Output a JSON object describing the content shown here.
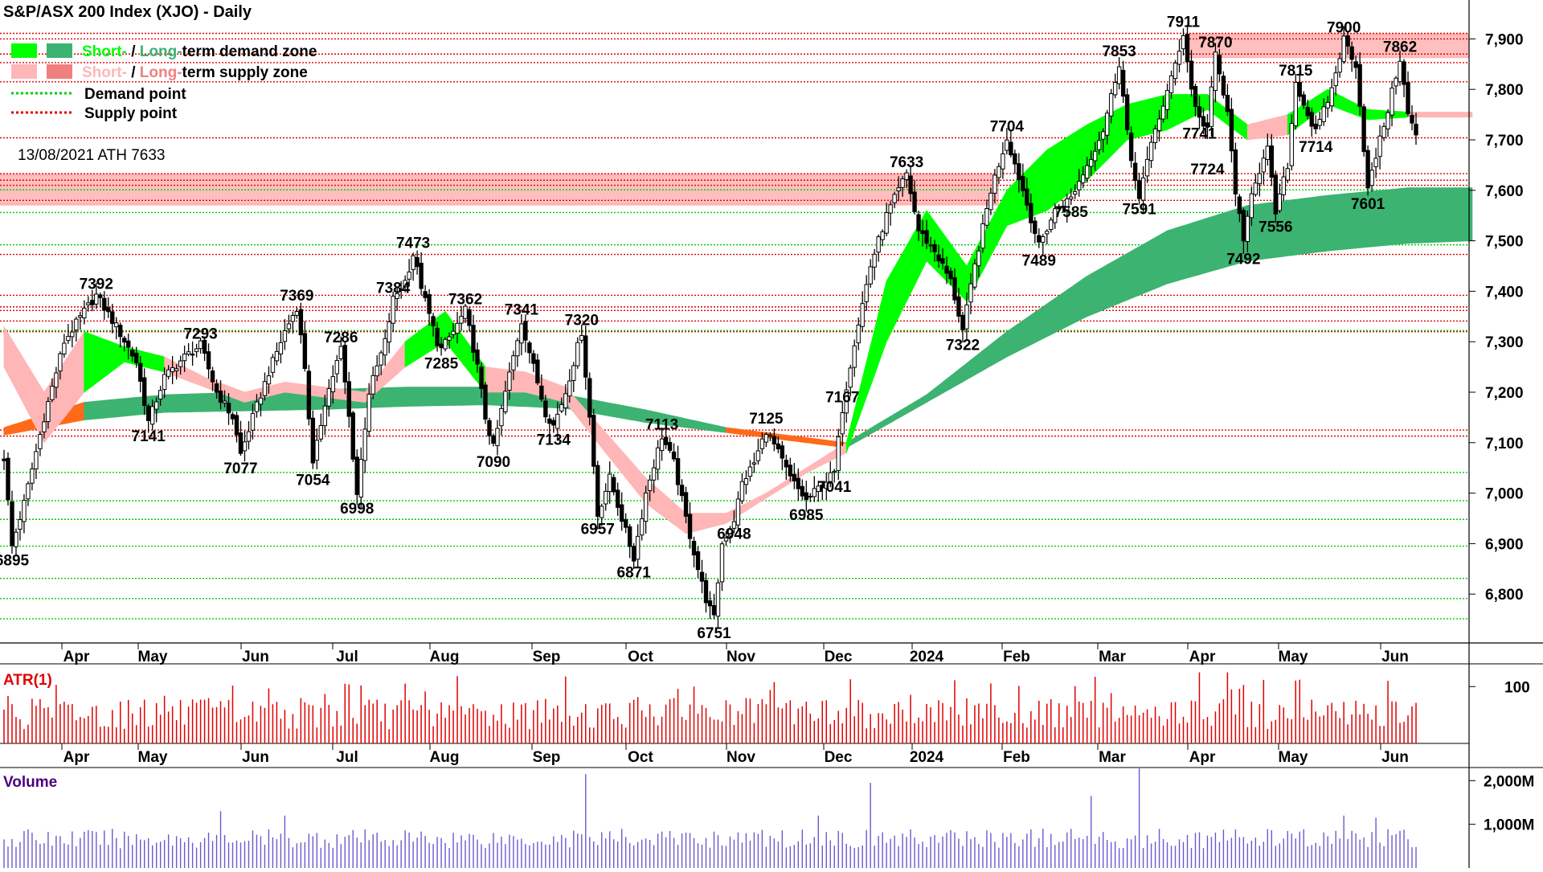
{
  "chart_data": {
    "type": "candlestick",
    "title": "S&P/ASX 200 Index (XJO) - Daily",
    "legend": [
      {
        "key": "demand_zone",
        "labels": [
          "Short-",
          " / ",
          "Long-",
          "term demand zone"
        ],
        "colors": [
          "#00ff00",
          "#000000",
          "#3cb371",
          "#000000"
        ],
        "swatches": [
          "#00ff00",
          "#3cb371"
        ]
      },
      {
        "key": "supply_zone",
        "labels": [
          "Short-",
          " / ",
          "Long-",
          "term supply zone"
        ],
        "colors": [
          "#ffb6b6",
          "#000000",
          "#f08080",
          "#000000"
        ],
        "swatches": [
          "#ffb6b6",
          "#f08080"
        ]
      },
      {
        "key": "demand_point",
        "label": "Demand point",
        "color": "#00cc00"
      },
      {
        "key": "supply_point",
        "label": "Supply point",
        "color": "#e00000"
      }
    ],
    "annotation": "13/08/2021 ATH 7633",
    "x_axis_labels": [
      "Apr",
      "May",
      "Jun",
      "Jul",
      "Aug",
      "Sep",
      "Oct",
      "Nov",
      "Dec",
      "2024",
      "Feb",
      "Mar",
      "Apr",
      "May",
      "Jun"
    ],
    "price_axis": {
      "ticks": [
        "7,900",
        "7,800",
        "7,700",
        "7,600",
        "7,500",
        "7,400",
        "7,300",
        "7,200",
        "7,100",
        "7,000",
        "6,900",
        "6,800"
      ],
      "tick_values": [
        7900,
        7800,
        7700,
        7600,
        7500,
        7400,
        7300,
        7200,
        7100,
        7000,
        6900,
        6800
      ],
      "ylim": [
        6700,
        7950
      ]
    },
    "price_labels": [
      {
        "text": "6895",
        "i": 2,
        "v": 6895,
        "pos": "below"
      },
      {
        "text": "7392",
        "i": 23,
        "v": 7392,
        "pos": "above"
      },
      {
        "text": "7141",
        "i": 36,
        "v": 7141,
        "pos": "below"
      },
      {
        "text": "7293",
        "i": 49,
        "v": 7293,
        "pos": "above"
      },
      {
        "text": "7077",
        "i": 59,
        "v": 7077,
        "pos": "below"
      },
      {
        "text": "7369",
        "i": 73,
        "v": 7369,
        "pos": "above"
      },
      {
        "text": "7054",
        "i": 77,
        "v": 7054,
        "pos": "below"
      },
      {
        "text": "7286",
        "i": 84,
        "v": 7286,
        "pos": "above"
      },
      {
        "text": "6998",
        "i": 88,
        "v": 6998,
        "pos": "below"
      },
      {
        "text": "7384",
        "i": 97,
        "v": 7384,
        "pos": "above"
      },
      {
        "text": "7473",
        "i": 102,
        "v": 7473,
        "pos": "above"
      },
      {
        "text": "7285",
        "i": 109,
        "v": 7285,
        "pos": "below"
      },
      {
        "text": "7362",
        "i": 115,
        "v": 7362,
        "pos": "above"
      },
      {
        "text": "7090",
        "i": 122,
        "v": 7090,
        "pos": "below"
      },
      {
        "text": "7341",
        "i": 129,
        "v": 7341,
        "pos": "above"
      },
      {
        "text": "7134",
        "i": 137,
        "v": 7134,
        "pos": "below"
      },
      {
        "text": "7320",
        "i": 144,
        "v": 7320,
        "pos": "above"
      },
      {
        "text": "6957",
        "i": 148,
        "v": 6957,
        "pos": "below"
      },
      {
        "text": "6871",
        "i": 157,
        "v": 6871,
        "pos": "below"
      },
      {
        "text": "7113",
        "i": 164,
        "v": 7113,
        "pos": "above"
      },
      {
        "text": "6751",
        "i": 177,
        "v": 6751,
        "pos": "below"
      },
      {
        "text": "6948",
        "i": 182,
        "v": 6948,
        "pos": "below"
      },
      {
        "text": "7125",
        "i": 190,
        "v": 7125,
        "pos": "above"
      },
      {
        "text": "6985",
        "i": 200,
        "v": 6985,
        "pos": "below"
      },
      {
        "text": "7041",
        "i": 207,
        "v": 7041,
        "pos": "below"
      },
      {
        "text": "7167",
        "i": 209,
        "v": 7167,
        "pos": "above"
      },
      {
        "text": "7633",
        "i": 225,
        "v": 7633,
        "pos": "above"
      },
      {
        "text": "7322",
        "i": 239,
        "v": 7322,
        "pos": "below"
      },
      {
        "text": "7704",
        "i": 250,
        "v": 7704,
        "pos": "above"
      },
      {
        "text": "7489",
        "i": 258,
        "v": 7489,
        "pos": "below"
      },
      {
        "text": "7585",
        "i": 266,
        "v": 7585,
        "pos": "below"
      },
      {
        "text": "7853",
        "i": 278,
        "v": 7853,
        "pos": "above"
      },
      {
        "text": "7591",
        "i": 283,
        "v": 7591,
        "pos": "below"
      },
      {
        "text": "7911",
        "i": 294,
        "v": 7911,
        "pos": "above"
      },
      {
        "text": "7741",
        "i": 298,
        "v": 7741,
        "pos": "below"
      },
      {
        "text": "7870",
        "i": 302,
        "v": 7870,
        "pos": "above"
      },
      {
        "text": "7724",
        "i": 300,
        "v": 7724,
        "pos": "below",
        "dy": 34
      },
      {
        "text": "7492",
        "i": 309,
        "v": 7492,
        "pos": "below"
      },
      {
        "text": "7556",
        "i": 317,
        "v": 7556,
        "pos": "below"
      },
      {
        "text": "7815",
        "i": 322,
        "v": 7815,
        "pos": "above"
      },
      {
        "text": "7714",
        "i": 327,
        "v": 7714,
        "pos": "below"
      },
      {
        "text": "7900",
        "i": 334,
        "v": 7900,
        "pos": "above"
      },
      {
        "text": "7601",
        "i": 340,
        "v": 7601,
        "pos": "below"
      },
      {
        "text": "7862",
        "i": 348,
        "v": 7862,
        "pos": "above"
      }
    ],
    "zones": {
      "supply_long": [
        {
          "from": 0,
          "to": 248,
          "lo": 7570,
          "hi": 7633
        },
        {
          "from": 295,
          "to": 366,
          "lo": 7862,
          "hi": 7911
        }
      ],
      "supply_short": [
        {
          "from": 0,
          "to": 248,
          "lo": 7575,
          "hi": 7628
        },
        {
          "from": 295,
          "to": 366,
          "lo": 7865,
          "hi": 7905
        }
      ]
    },
    "supply_points": [
      7633,
      7620,
      7610,
      7580,
      7473,
      7392,
      7369,
      7362,
      7341,
      7320,
      7125,
      7113,
      7704,
      7853,
      7815,
      7870,
      7900,
      7911
    ],
    "demand_points": [
      7601,
      7556,
      7492,
      7322,
      7041,
      6985,
      6948,
      6895,
      6831,
      6791,
      6751
    ],
    "atr_panel": {
      "label": "ATR(1)",
      "tick": "100",
      "tick_value": 100,
      "ylim": [
        0,
        140
      ]
    },
    "volume_panel": {
      "label": "Volume",
      "ticks": [
        "2,000M",
        "1,000M"
      ],
      "tick_values": [
        2000,
        1000
      ],
      "ylim": [
        0,
        2300
      ]
    },
    "series": [
      {
        "name": "price_path",
        "x": [
          0,
          2,
          5,
          10,
          15,
          20,
          23,
          28,
          33,
          36,
          40,
          45,
          49,
          53,
          57,
          59,
          62,
          66,
          70,
          73,
          75,
          77,
          80,
          84,
          86,
          88,
          91,
          95,
          97,
          100,
          102,
          105,
          108,
          109,
          112,
          115,
          118,
          120,
          122,
          125,
          129,
          132,
          135,
          137,
          140,
          144,
          146,
          148,
          151,
          154,
          157,
          160,
          164,
          167,
          170,
          173,
          175,
          177,
          179,
          182,
          184,
          187,
          190,
          193,
          196,
          200,
          203,
          207,
          209,
          212,
          216,
          220,
          225,
          228,
          232,
          236,
          239,
          242,
          246,
          250,
          254,
          258,
          262,
          266,
          270,
          274,
          278,
          281,
          283,
          287,
          291,
          294,
          296,
          298,
          300,
          302,
          305,
          307,
          309,
          311,
          315,
          317,
          320,
          322,
          325,
          327,
          331,
          334,
          337,
          340,
          343,
          345,
          348,
          350,
          352
        ],
        "y": [
          7070,
          6895,
          6980,
          7150,
          7300,
          7360,
          7392,
          7330,
          7260,
          7141,
          7230,
          7270,
          7293,
          7200,
          7150,
          7077,
          7150,
          7240,
          7320,
          7369,
          7250,
          7054,
          7180,
          7286,
          7150,
          6998,
          7200,
          7300,
          7384,
          7420,
          7473,
          7380,
          7300,
          7285,
          7320,
          7362,
          7250,
          7150,
          7090,
          7200,
          7341,
          7250,
          7160,
          7134,
          7200,
          7320,
          7150,
          6957,
          7030,
          6950,
          6871,
          7000,
          7113,
          7060,
          6950,
          6850,
          6790,
          6751,
          6900,
          6948,
          7020,
          7060,
          7125,
          7080,
          7030,
          6985,
          7010,
          7041,
          7167,
          7300,
          7450,
          7550,
          7633,
          7520,
          7480,
          7420,
          7322,
          7450,
          7600,
          7704,
          7600,
          7489,
          7560,
          7585,
          7650,
          7720,
          7853,
          7650,
          7591,
          7720,
          7820,
          7911,
          7800,
          7741,
          7724,
          7870,
          7750,
          7600,
          7492,
          7600,
          7680,
          7556,
          7650,
          7815,
          7750,
          7714,
          7800,
          7900,
          7850,
          7601,
          7700,
          7760,
          7862,
          7750,
          7710
        ]
      },
      {
        "name": "long_term_band",
        "x": [
          0,
          20,
          40,
          60,
          80,
          100,
          120,
          140,
          160,
          180,
          200,
          210,
          230,
          250,
          270,
          290,
          310,
          330,
          350,
          366
        ],
        "y_lo": [
          7115,
          7145,
          7160,
          7163,
          7166,
          7172,
          7175,
          7168,
          7140,
          7120,
          7100,
          7090,
          7180,
          7270,
          7350,
          7415,
          7460,
          7480,
          7495,
          7500
        ],
        "y_hi": [
          7130,
          7180,
          7195,
          7200,
          7205,
          7210,
          7210,
          7195,
          7165,
          7130,
          7110,
          7100,
          7195,
          7320,
          7430,
          7520,
          7570,
          7590,
          7605,
          7605
        ],
        "states": [
          0,
          1,
          1,
          1,
          1,
          1,
          1,
          1,
          1,
          0,
          0,
          1,
          1,
          1,
          1,
          1,
          1,
          1,
          1,
          1
        ]
      },
      {
        "name": "short_term_band",
        "x": [
          0,
          10,
          20,
          30,
          40,
          50,
          60,
          70,
          80,
          90,
          100,
          110,
          120,
          130,
          140,
          150,
          160,
          170,
          180,
          190,
          200,
          210,
          220,
          230,
          240,
          250,
          260,
          270,
          280,
          290,
          300,
          310,
          320,
          330,
          340,
          350,
          366
        ],
        "y_lo": [
          7250,
          7100,
          7200,
          7260,
          7240,
          7210,
          7180,
          7200,
          7190,
          7180,
          7250,
          7300,
          7200,
          7200,
          7180,
          7080,
          6980,
          6920,
          6940,
          6990,
          7040,
          7080,
          7300,
          7460,
          7380,
          7530,
          7560,
          7620,
          7700,
          7720,
          7760,
          7700,
          7710,
          7770,
          7740,
          7745,
          7745
        ],
        "y_hi": [
          7330,
          7200,
          7320,
          7290,
          7270,
          7230,
          7200,
          7220,
          7210,
          7200,
          7300,
          7360,
          7250,
          7240,
          7210,
          7120,
          7030,
          6960,
          6960,
          7000,
          7050,
          7100,
          7420,
          7560,
          7450,
          7600,
          7680,
          7730,
          7770,
          7790,
          7790,
          7730,
          7750,
          7800,
          7760,
          7755,
          7755
        ],
        "states": [
          -1,
          -1,
          1,
          1,
          -1,
          -1,
          -1,
          -1,
          -1,
          -1,
          1,
          1,
          -1,
          -1,
          -1,
          -1,
          -1,
          -1,
          -1,
          -1,
          -1,
          1,
          1,
          1,
          1,
          1,
          1,
          1,
          1,
          1,
          1,
          -1,
          1,
          1,
          1,
          -1,
          -1
        ]
      }
    ]
  }
}
